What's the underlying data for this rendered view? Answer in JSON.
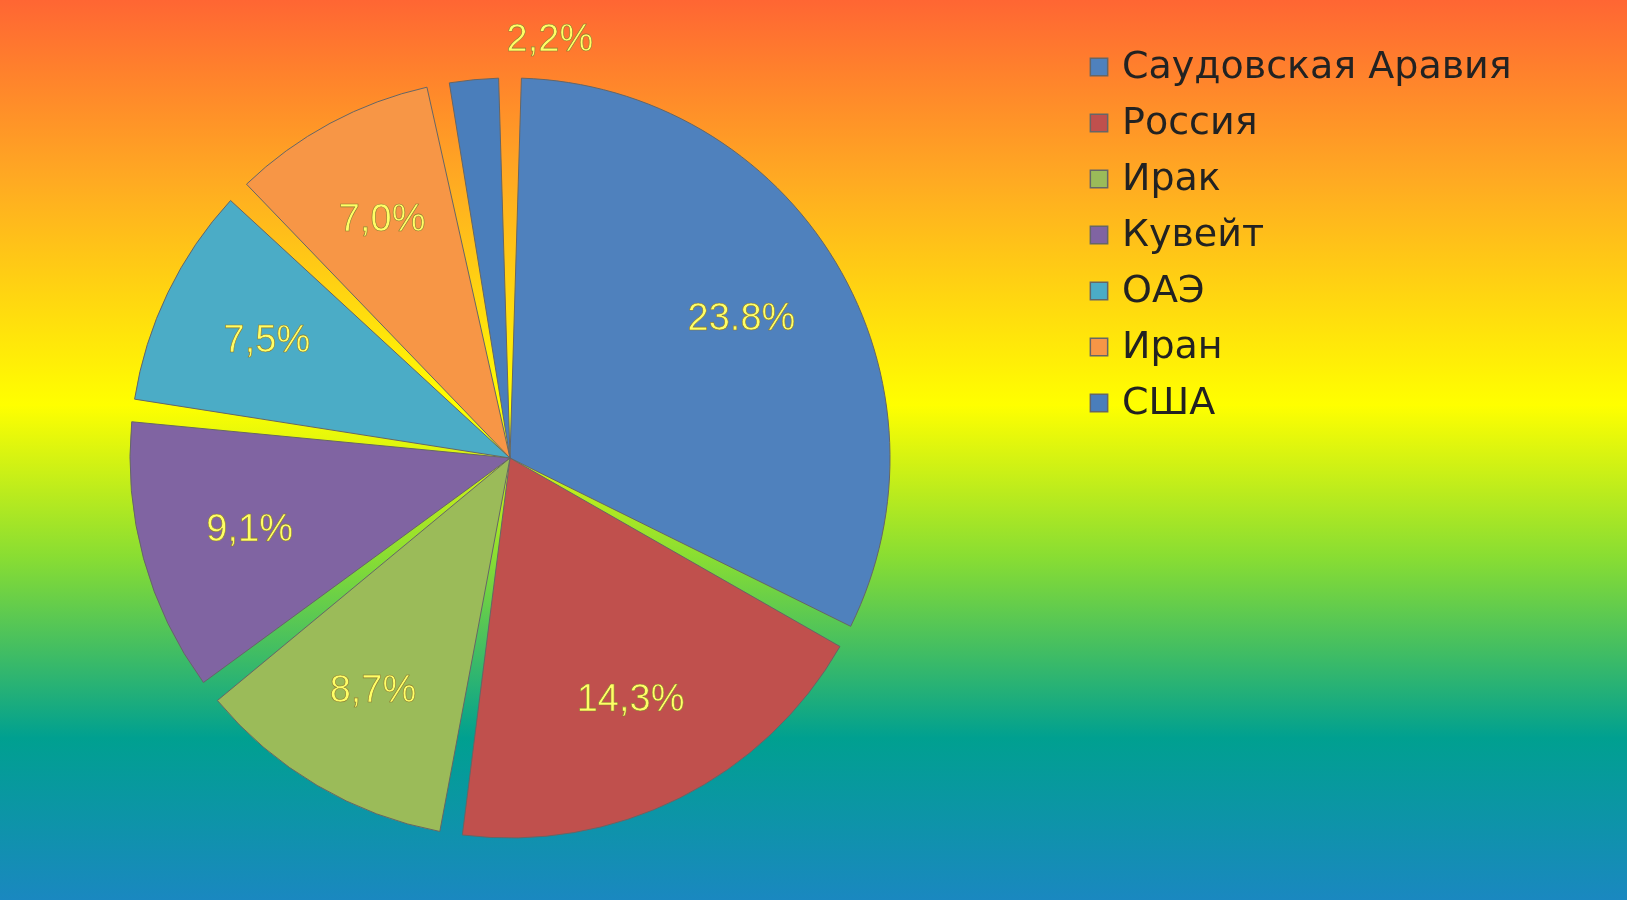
{
  "chart_data": {
    "type": "pie",
    "categories": [
      "Саудовская Аравия",
      "Россия",
      "Ирак",
      "Кувейт",
      "ОАЭ",
      "Иран",
      "США"
    ],
    "values": [
      23.8,
      14.3,
      8.7,
      9.1,
      7.5,
      7.0,
      2.2
    ],
    "value_labels": [
      "23.8%",
      "14,3%",
      "8,7%",
      "9,1%",
      "7,5%",
      "7,0%",
      "2,2%"
    ],
    "colors": [
      "#4f81bd",
      "#c0504d",
      "#9bbb59",
      "#8064a2",
      "#4bacc6",
      "#f79646",
      "#4a7ebb"
    ],
    "legend": "right"
  }
}
